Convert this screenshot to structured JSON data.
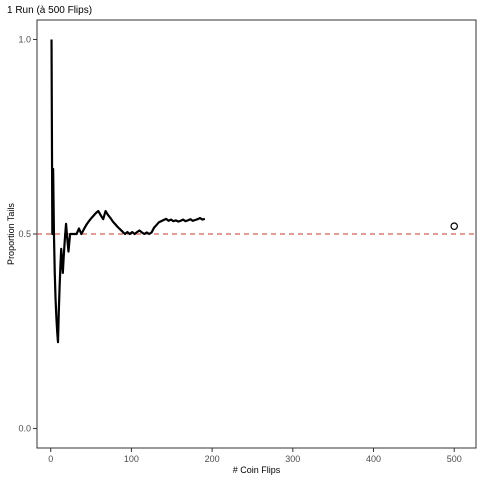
{
  "chart_data": {
    "type": "line",
    "title": "1 Run (à 500 Flips)",
    "xlabel": "# Coin Flips",
    "ylabel": "Proportion Tails",
    "xlim": [
      -17,
      527
    ],
    "ylim": [
      -0.05,
      1.05
    ],
    "x_ticks": [
      0,
      100,
      200,
      300,
      400,
      500
    ],
    "y_ticks": [
      0.0,
      0.5,
      1.0
    ],
    "x_tick_labels": [
      "0",
      "100",
      "200",
      "300",
      "400",
      "500"
    ],
    "y_tick_labels": [
      "0.0",
      "0.5",
      "1.0"
    ],
    "grid": false,
    "reference_line": {
      "y": 0.5,
      "style": "dashed",
      "color": "#c0392b"
    },
    "series": [
      {
        "color": "#000000",
        "x": [
          1,
          2,
          3,
          4,
          5,
          6,
          7,
          8,
          9,
          10,
          11,
          12,
          13,
          14,
          15,
          16,
          17,
          18,
          19,
          20,
          22,
          24,
          26,
          28,
          30,
          32,
          35,
          38,
          41,
          44,
          47,
          50,
          53,
          56,
          59,
          62,
          65,
          68,
          71,
          74,
          77,
          80,
          83,
          86,
          89,
          92,
          95,
          98,
          101,
          104,
          107,
          110,
          113,
          116,
          119,
          122,
          125,
          128,
          131,
          134,
          137,
          140,
          143,
          146,
          149,
          152,
          155,
          158,
          161,
          164,
          167,
          170,
          173,
          176,
          179,
          182,
          185,
          188,
          191
        ],
        "y": [
          1.0,
          0.5,
          0.667,
          0.5,
          0.4,
          0.333,
          0.286,
          0.25,
          0.222,
          0.3,
          0.364,
          0.417,
          0.462,
          0.429,
          0.4,
          0.438,
          0.471,
          0.5,
          0.526,
          0.5,
          0.455,
          0.5,
          0.5,
          0.5,
          0.5,
          0.5,
          0.514,
          0.5,
          0.512,
          0.523,
          0.532,
          0.54,
          0.547,
          0.554,
          0.559,
          0.548,
          0.538,
          0.559,
          0.549,
          0.541,
          0.532,
          0.525,
          0.518,
          0.512,
          0.506,
          0.5,
          0.505,
          0.5,
          0.505,
          0.5,
          0.505,
          0.509,
          0.504,
          0.5,
          0.504,
          0.5,
          0.504,
          0.516,
          0.523,
          0.53,
          0.533,
          0.536,
          0.539,
          0.534,
          0.537,
          0.533,
          0.535,
          0.532,
          0.534,
          0.537,
          0.533,
          0.535,
          0.538,
          0.534,
          0.536,
          0.538,
          0.541,
          0.537,
          0.539
        ]
      }
    ],
    "points": [
      {
        "x": 500,
        "y": 0.52,
        "marker": "open-circle"
      }
    ]
  }
}
